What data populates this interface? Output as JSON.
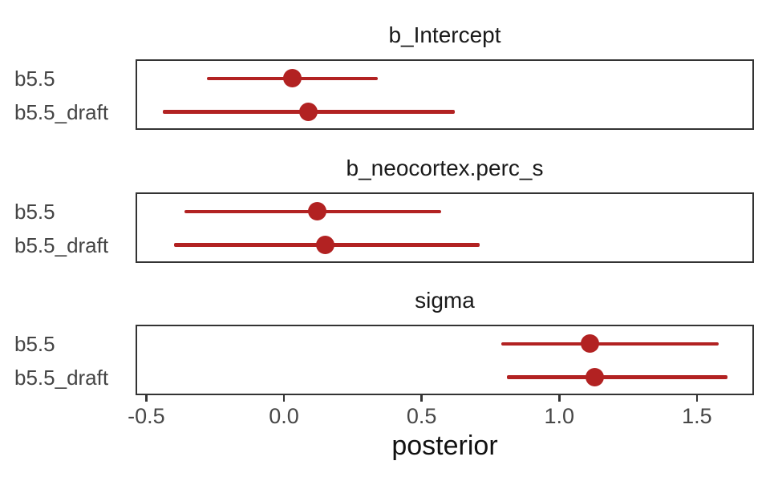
{
  "chart_data": {
    "type": "pointrange",
    "xlabel": "posterior",
    "xlim": [
      -0.539,
      1.707
    ],
    "x_ticks": [
      {
        "value": -0.5,
        "label": "-0.5"
      },
      {
        "value": 0.0,
        "label": "0.0"
      },
      {
        "value": 0.5,
        "label": "0.5"
      },
      {
        "value": 1.0,
        "label": "1.0"
      },
      {
        "value": 1.5,
        "label": "1.5"
      }
    ],
    "models": [
      "b5.5",
      "b5.5_draft"
    ],
    "facets": [
      {
        "title": "b_Intercept",
        "rows": [
          {
            "model": "b5.5",
            "lower": -0.28,
            "point": 0.03,
            "upper": 0.34
          },
          {
            "model": "b5.5_draft",
            "lower": -0.44,
            "point": 0.09,
            "upper": 0.62
          }
        ]
      },
      {
        "title": "b_neocortex.perc_s",
        "rows": [
          {
            "model": "b5.5",
            "lower": -0.36,
            "point": 0.12,
            "upper": 0.57
          },
          {
            "model": "b5.5_draft",
            "lower": -0.4,
            "point": 0.15,
            "upper": 0.71
          }
        ]
      },
      {
        "title": "sigma",
        "rows": [
          {
            "model": "b5.5",
            "lower": 0.79,
            "point": 1.11,
            "upper": 1.58
          },
          {
            "model": "b5.5_draft",
            "lower": 0.81,
            "point": 1.13,
            "upper": 1.61
          }
        ]
      }
    ],
    "colors": {
      "interval": "#B22222",
      "point": "#B22222",
      "panel_border": "#333333",
      "axis_text": "#474747",
      "label_text": "#454545",
      "title_text": "#1a1a1a"
    },
    "grid": "off",
    "legend": "none"
  }
}
